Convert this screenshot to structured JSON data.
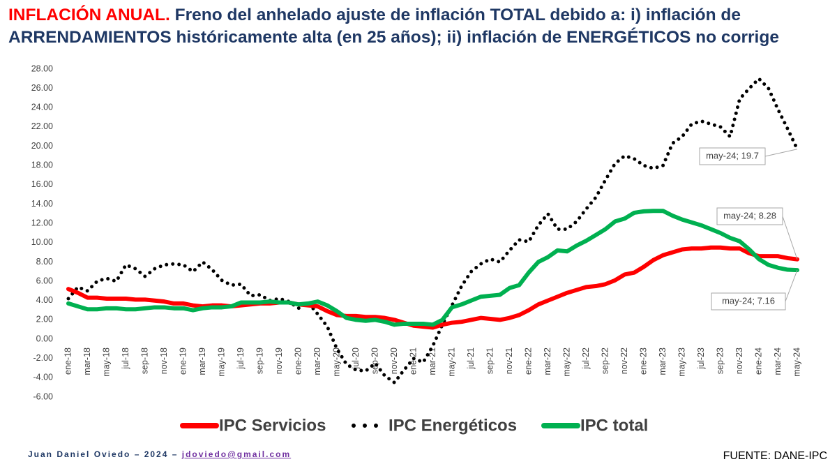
{
  "chart_data": {
    "type": "line",
    "title_lead": "INFLACIÓN ANUAL.",
    "title": "Freno del anhelado ajuste de inflación TOTAL debido a: i) inflación de ARRENDAMIENTOS históricamente alta (en 25 años); ii) inflación de ENERGÉTICOS no corrige",
    "credit": "Juan Daniel Oviedo – 2024 –",
    "email": "jdoviedo@gmail.com",
    "source": "FUENTE: DANE-IPC",
    "grid": false,
    "legend": "bottom",
    "ylim": [
      -6,
      28
    ],
    "yticks": [
      {
        "value": -6,
        "label": "-6.00"
      },
      {
        "value": -4,
        "label": "-4.00"
      },
      {
        "value": -2,
        "label": "-2.00"
      },
      {
        "value": 0,
        "label": "0.00"
      },
      {
        "value": 2,
        "label": "2.00"
      },
      {
        "value": 4,
        "label": "4.00"
      },
      {
        "value": 6,
        "label": "6.00"
      },
      {
        "value": 8,
        "label": "8.00"
      },
      {
        "value": 10,
        "label": "10.00"
      },
      {
        "value": 12,
        "label": "12.00"
      },
      {
        "value": 14,
        "label": "14.00"
      },
      {
        "value": 16,
        "label": "16.00"
      },
      {
        "value": 18,
        "label": "18.00"
      },
      {
        "value": 20,
        "label": "20.00"
      },
      {
        "value": 22,
        "label": "22.00"
      },
      {
        "value": 24,
        "label": "24.00"
      },
      {
        "value": 26,
        "label": "26.00"
      },
      {
        "value": 28,
        "label": "28.00"
      }
    ],
    "categories": [
      "ene-18",
      null,
      "mar-18",
      null,
      "may-18",
      null,
      "jul-18",
      null,
      "sep-18",
      null,
      "nov-18",
      null,
      "ene-19",
      null,
      "mar-19",
      null,
      "may-19",
      null,
      "jul-19",
      null,
      "sep-19",
      null,
      "nov-19",
      null,
      "ene-20",
      null,
      "mar-20",
      null,
      "may-20",
      null,
      "jul-20",
      null,
      "sep-20",
      null,
      "nov-20",
      null,
      "ene-21",
      null,
      "mar-21",
      null,
      "may-21",
      null,
      "jul-21",
      null,
      "sep-21",
      null,
      "nov-21",
      null,
      "ene-22",
      null,
      "mar-22",
      null,
      "may-22",
      null,
      "jul-22",
      null,
      "sep-22",
      null,
      "nov-22",
      null,
      "ene-23",
      null,
      "mar-23",
      null,
      "may-23",
      null,
      "jul-23",
      null,
      "sep-23",
      null,
      "nov-23",
      null,
      "ene-24",
      null,
      "mar-24",
      null,
      "may-24"
    ],
    "series": [
      {
        "name": "IPC Servicios",
        "color": "#ff0000",
        "style": "solid",
        "values": [
          5.2,
          4.8,
          4.3,
          4.3,
          4.2,
          4.2,
          4.2,
          4.1,
          4.1,
          4.0,
          3.9,
          3.7,
          3.7,
          3.5,
          3.4,
          3.5,
          3.5,
          3.4,
          3.5,
          3.6,
          3.7,
          3.7,
          3.8,
          3.8,
          3.6,
          3.5,
          3.4,
          2.9,
          2.5,
          2.4,
          2.4,
          2.3,
          2.3,
          2.2,
          2.0,
          1.7,
          1.4,
          1.3,
          1.2,
          1.5,
          1.7,
          1.8,
          2.0,
          2.2,
          2.1,
          2.0,
          2.2,
          2.5,
          3.0,
          3.6,
          4.0,
          4.4,
          4.8,
          5.1,
          5.4,
          5.5,
          5.7,
          6.1,
          6.7,
          6.9,
          7.5,
          8.2,
          8.7,
          9.0,
          9.3,
          9.4,
          9.4,
          9.5,
          9.5,
          9.4,
          9.4,
          8.9,
          8.6,
          8.6,
          8.6,
          8.4,
          8.28
        ],
        "value_labels": [
          null,
          null,
          null,
          null,
          null,
          null,
          null,
          null,
          null,
          null,
          null,
          null,
          null,
          null,
          null,
          null,
          null,
          null,
          null,
          null,
          null,
          null,
          null,
          null,
          null,
          null,
          null,
          null,
          null,
          null,
          null,
          null,
          null,
          null,
          null,
          null,
          null,
          null,
          null,
          null,
          null,
          null,
          null,
          null,
          null,
          null,
          null,
          null,
          null,
          null,
          null,
          null,
          null,
          null,
          null,
          null,
          null,
          null,
          null,
          null,
          null,
          null,
          null,
          null,
          null,
          null,
          null,
          null,
          null,
          null,
          null,
          null,
          null,
          null,
          null,
          null,
          "may-24; 8.28"
        ]
      },
      {
        "name": "IPC Energéticos",
        "color": "#000000",
        "style": "dotted",
        "values": [
          4.2,
          5.4,
          5.0,
          6.0,
          6.3,
          6.0,
          7.7,
          7.3,
          6.5,
          7.3,
          7.7,
          7.8,
          7.7,
          7.0,
          8.0,
          7.2,
          6.1,
          5.6,
          5.7,
          4.5,
          4.6,
          4.0,
          4.2,
          3.9,
          3.2,
          3.8,
          2.6,
          1.3,
          -1.0,
          -2.6,
          -3.2,
          -3.3,
          -2.5,
          -3.8,
          -4.5,
          -3.2,
          -2.0,
          -2.4,
          -0.7,
          1.5,
          3.5,
          5.5,
          7.0,
          7.8,
          8.3,
          8.0,
          9.2,
          10.3,
          10.1,
          11.8,
          13.0,
          11.4,
          11.4,
          12.2,
          13.5,
          14.7,
          16.5,
          18.2,
          19.0,
          18.7,
          18.0,
          17.7,
          18.0,
          20.3,
          21.0,
          22.3,
          22.6,
          22.3,
          22.0,
          21.0,
          24.9,
          26.0,
          27.0,
          26.0,
          23.8,
          21.8,
          19.7
        ],
        "value_labels": [
          null,
          null,
          null,
          null,
          null,
          null,
          null,
          null,
          null,
          null,
          null,
          null,
          null,
          null,
          null,
          null,
          null,
          null,
          null,
          null,
          null,
          null,
          null,
          null,
          null,
          null,
          null,
          null,
          null,
          null,
          null,
          null,
          null,
          null,
          null,
          null,
          null,
          null,
          null,
          null,
          null,
          null,
          null,
          null,
          null,
          null,
          null,
          null,
          null,
          null,
          null,
          null,
          null,
          null,
          null,
          null,
          null,
          null,
          null,
          null,
          null,
          null,
          null,
          null,
          null,
          null,
          null,
          null,
          null,
          null,
          null,
          null,
          null,
          null,
          null,
          null,
          "may-24; 19.7"
        ]
      },
      {
        "name": "IPC total",
        "color": "#00b050",
        "style": "solid",
        "values": [
          3.7,
          3.4,
          3.1,
          3.1,
          3.2,
          3.2,
          3.1,
          3.1,
          3.2,
          3.3,
          3.3,
          3.2,
          3.2,
          3.0,
          3.2,
          3.3,
          3.3,
          3.4,
          3.8,
          3.8,
          3.8,
          3.9,
          3.8,
          3.8,
          3.6,
          3.7,
          3.9,
          3.5,
          2.9,
          2.2,
          2.0,
          1.9,
          2.0,
          1.8,
          1.5,
          1.6,
          1.6,
          1.6,
          1.5,
          2.0,
          3.3,
          3.6,
          4.0,
          4.4,
          4.5,
          4.6,
          5.3,
          5.6,
          6.9,
          8.0,
          8.5,
          9.2,
          9.1,
          9.7,
          10.2,
          10.8,
          11.4,
          12.2,
          12.5,
          13.1,
          13.25,
          13.3,
          13.3,
          12.8,
          12.4,
          12.1,
          11.8,
          11.4,
          11.0,
          10.5,
          10.15,
          9.3,
          8.3,
          7.7,
          7.4,
          7.2,
          7.16
        ],
        "value_labels": [
          null,
          null,
          null,
          null,
          null,
          null,
          null,
          null,
          null,
          null,
          null,
          null,
          null,
          null,
          null,
          null,
          null,
          null,
          null,
          null,
          null,
          null,
          null,
          null,
          null,
          null,
          null,
          null,
          null,
          null,
          null,
          null,
          null,
          null,
          null,
          null,
          null,
          null,
          null,
          null,
          null,
          null,
          null,
          null,
          null,
          null,
          null,
          null,
          null,
          null,
          null,
          null,
          null,
          null,
          null,
          null,
          null,
          null,
          null,
          null,
          null,
          null,
          null,
          null,
          null,
          null,
          null,
          null,
          null,
          null,
          null,
          null,
          null,
          null,
          null,
          null,
          "may-24; 7.16"
        ]
      }
    ]
  }
}
